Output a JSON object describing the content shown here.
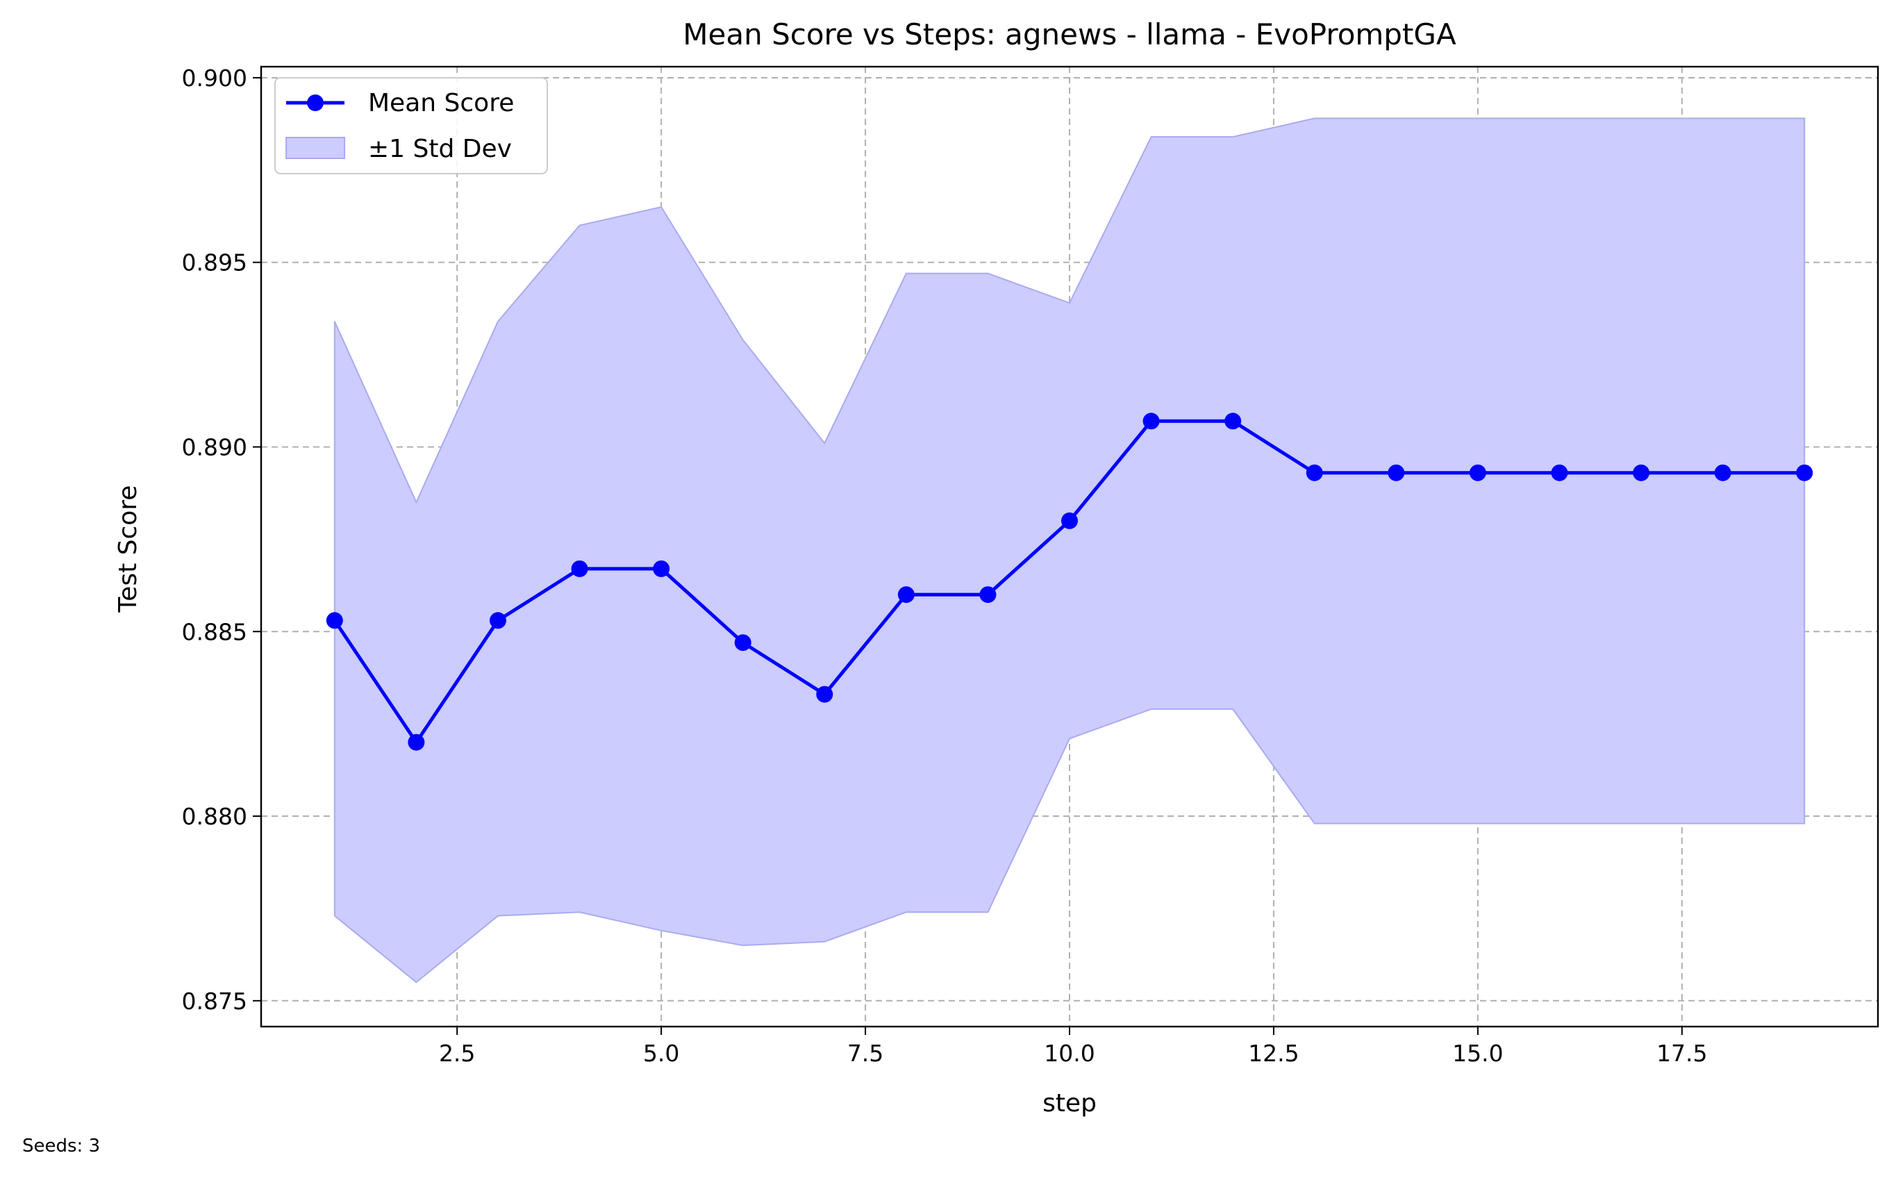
{
  "chart_data": {
    "type": "line",
    "title": "Mean Score vs Steps: agnews - llama - EvoPromptGA",
    "xlabel": "step",
    "ylabel": "Test Score",
    "xlim": [
      0.1,
      19.9
    ],
    "ylim": [
      0.8743,
      0.9003
    ],
    "xticks": [
      2.5,
      5.0,
      7.5,
      10.0,
      12.5,
      15.0,
      17.5
    ],
    "xtick_labels": [
      "2.5",
      "5.0",
      "7.5",
      "10.0",
      "12.5",
      "15.0",
      "17.5"
    ],
    "yticks": [
      0.875,
      0.88,
      0.885,
      0.89,
      0.895,
      0.9
    ],
    "ytick_labels": [
      "0.875",
      "0.880",
      "0.885",
      "0.890",
      "0.895",
      "0.900"
    ],
    "grid": true,
    "legend_position": "top-left",
    "x": [
      1,
      2,
      3,
      4,
      5,
      6,
      7,
      8,
      9,
      10,
      11,
      12,
      13,
      14,
      15,
      16,
      17,
      18,
      19
    ],
    "series": [
      {
        "name": "Mean Score",
        "values": [
          0.8853,
          0.882,
          0.8853,
          0.8867,
          0.8867,
          0.8847,
          0.8833,
          0.886,
          0.886,
          0.888,
          0.8907,
          0.8907,
          0.8893,
          0.8893,
          0.8893,
          0.8893,
          0.8893,
          0.8893,
          0.8893
        ],
        "color": "#0000ff"
      }
    ],
    "band": {
      "name": "±1 Std Dev",
      "upper": [
        0.8934,
        0.8885,
        0.8934,
        0.896,
        0.8965,
        0.8929,
        0.8901,
        0.8947,
        0.8947,
        0.8939,
        0.8984,
        0.8984,
        0.8989,
        0.8989,
        0.8989,
        0.8989,
        0.8989,
        0.8989,
        0.8989
      ],
      "lower": [
        0.8773,
        0.8755,
        0.8773,
        0.8774,
        0.8769,
        0.8765,
        0.8766,
        0.8774,
        0.8774,
        0.8821,
        0.8829,
        0.8829,
        0.8798,
        0.8798,
        0.8798,
        0.8798,
        0.8798,
        0.8798,
        0.8798
      ],
      "fill_color": "#ccccff",
      "edge_color": "#aaaaf0"
    },
    "footnote": "Seeds: 3"
  }
}
